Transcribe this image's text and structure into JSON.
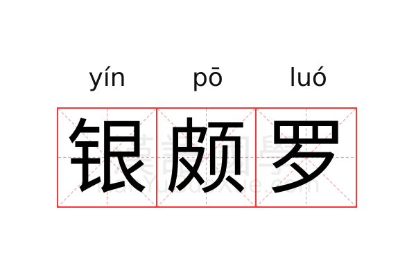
{
  "characters": [
    {
      "pinyin": "yín",
      "hanzi": "银"
    },
    {
      "pinyin": "pō",
      "hanzi": "颇"
    },
    {
      "pinyin": "luó",
      "hanzi": "罗"
    }
  ],
  "watermark": {
    "chinese": "漢語國學",
    "latin": "HanYuGuoXue.com"
  },
  "colors": {
    "grid_border": "#ff3333",
    "guide_lines": "#f5a0a0"
  }
}
